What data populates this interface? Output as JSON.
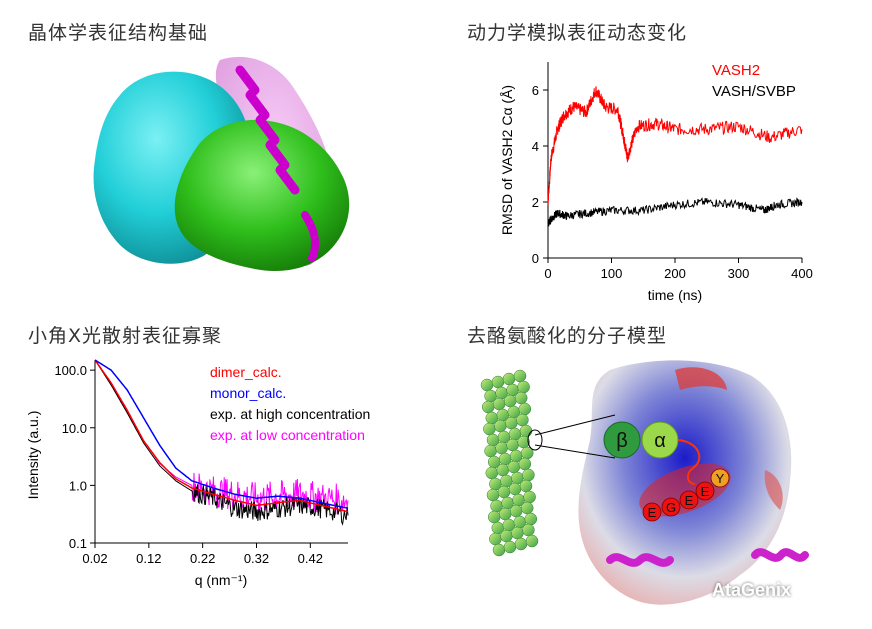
{
  "titles": {
    "top_left": "晶体学表征结构基础",
    "top_right": "动力学模拟表征动态变化",
    "bottom_left": "小角X光散射表征寡聚",
    "bottom_right": "去酪氨酸化的分子模型"
  },
  "model_labels": {
    "beta": "β",
    "alpha": "α",
    "tail": [
      "E",
      "G",
      "E",
      "E",
      "Y"
    ]
  },
  "watermark": "AtaGenix",
  "colors": {
    "cyan_surface": "#29d3dc",
    "green_surface": "#34c21e",
    "magenta_helix": "#cc00cc",
    "red_series": "#ff0000",
    "black_series": "#000000",
    "blue_series": "#0000ff",
    "magenta_series": "#ff00ff"
  },
  "chart_data": [
    {
      "type": "line",
      "xlabel": "time (ns)",
      "ylabel": "RMSD of  VASH2 Cα (Å)",
      "xlim": [
        0,
        400
      ],
      "ylim": [
        0,
        7
      ],
      "xticks": [
        0,
        100,
        200,
        300,
        400
      ],
      "yticks": [
        0,
        2,
        4,
        6
      ],
      "legend_position": "top-right",
      "series": [
        {
          "name": "VASH2",
          "color": "#ff0000",
          "x": [
            0,
            5,
            15,
            25,
            40,
            60,
            75,
            90,
            110,
            120,
            125,
            140,
            170,
            200,
            250,
            300,
            350,
            400
          ],
          "y": [
            2.0,
            3.6,
            4.6,
            5.1,
            5.4,
            5.2,
            6.0,
            5.4,
            5.3,
            4.2,
            3.6,
            4.7,
            4.8,
            4.6,
            4.6,
            4.7,
            4.3,
            4.6
          ]
        },
        {
          "name": "VASH/SVBP",
          "color": "#000000",
          "x": [
            0,
            5,
            15,
            30,
            60,
            100,
            150,
            200,
            250,
            300,
            340,
            360,
            400
          ],
          "y": [
            1.2,
            1.4,
            1.6,
            1.5,
            1.6,
            1.7,
            1.7,
            1.9,
            2.0,
            1.9,
            1.7,
            1.9,
            2.0
          ]
        }
      ]
    },
    {
      "type": "line",
      "xlabel": "q (nm⁻¹)",
      "ylabel": "Intensity  (a.u.)",
      "xscale": "linear",
      "yscale": "log",
      "xlim": [
        0.02,
        0.49
      ],
      "ylim": [
        0.1,
        150
      ],
      "xticks": [
        "0.02",
        "0.12",
        "0.22",
        "0.32",
        "0.42"
      ],
      "yticks": [
        "0.1",
        "1.0",
        "10.0",
        "100.0"
      ],
      "legend_position": "top-right",
      "series": [
        {
          "name": "dimer_calc.",
          "color": "#ff0000",
          "x": [
            0.02,
            0.05,
            0.08,
            0.11,
            0.14,
            0.17,
            0.2,
            0.24,
            0.28,
            0.32,
            0.36,
            0.4,
            0.44,
            0.49
          ],
          "y": [
            150,
            60,
            20,
            6,
            2.5,
            1.3,
            0.9,
            0.7,
            0.55,
            0.45,
            0.5,
            0.55,
            0.45,
            0.35
          ]
        },
        {
          "name": "monor_calc.",
          "color": "#0000ff",
          "x": [
            0.02,
            0.05,
            0.08,
            0.11,
            0.14,
            0.17,
            0.2,
            0.24,
            0.28,
            0.32,
            0.36,
            0.4,
            0.44,
            0.49
          ],
          "y": [
            150,
            100,
            45,
            15,
            5,
            2.0,
            1.2,
            0.9,
            0.7,
            0.6,
            0.65,
            0.6,
            0.5,
            0.4
          ]
        },
        {
          "name": "exp. at high concentration",
          "color": "#000000",
          "x": [
            0.02,
            0.05,
            0.08,
            0.11,
            0.14,
            0.17,
            0.2,
            0.24,
            0.28,
            0.32,
            0.36,
            0.4,
            0.44,
            0.49
          ],
          "y": [
            150,
            55,
            18,
            5.5,
            2.2,
            1.2,
            0.8,
            0.6,
            0.4,
            0.35,
            0.4,
            0.45,
            0.4,
            0.3
          ]
        },
        {
          "name": "exp. at low concentration",
          "color": "#ff00ff",
          "x": [
            0.02,
            0.05,
            0.08,
            0.11,
            0.14,
            0.17,
            0.2,
            0.24,
            0.28,
            0.32,
            0.36,
            0.4,
            0.44,
            0.49
          ],
          "y": [
            150,
            58,
            19,
            6,
            2.4,
            1.4,
            1.0,
            0.8,
            0.7,
            0.6,
            0.65,
            0.7,
            0.6,
            0.55
          ]
        }
      ]
    }
  ]
}
